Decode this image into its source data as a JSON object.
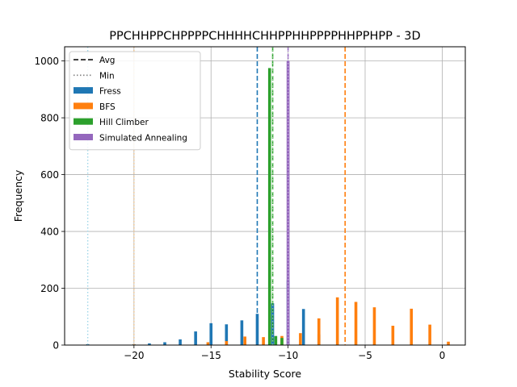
{
  "chart_data": {
    "type": "bar",
    "title": "PPCHHPPCHPPPPCHHHHCHHPPHHPPPPHHPPHPP - 3D",
    "xlabel": "Stability Score",
    "ylabel": "Frequency",
    "xlim": [
      -24.5,
      1.5
    ],
    "ylim": [
      0,
      1050
    ],
    "xticks": [
      -20,
      -15,
      -10,
      -5,
      0
    ],
    "xtick_labels": [
      "−20",
      "−15",
      "−10",
      "−5",
      "0"
    ],
    "yticks": [
      0,
      200,
      400,
      600,
      800,
      1000
    ],
    "ytick_labels": [
      "0",
      "200",
      "400",
      "600",
      "800",
      "1000"
    ],
    "grid": true,
    "legend_position": "top-left",
    "legend": [
      {
        "label": "Avg",
        "kind": "dashed-line",
        "color": "#000000"
      },
      {
        "label": "Min",
        "kind": "dotted-line",
        "color": "#808080"
      },
      {
        "label": "Fress",
        "kind": "patch",
        "color": "#1f77b4"
      },
      {
        "label": "BFS",
        "kind": "patch",
        "color": "#ff7f0e"
      },
      {
        "label": "Hill Climber",
        "kind": "patch",
        "color": "#2ca02c"
      },
      {
        "label": "Simulated Annealing",
        "kind": "patch",
        "color": "#9467bd"
      }
    ],
    "series": [
      {
        "name": "Fress",
        "color": "#1f77b4",
        "x": [
          -23.0,
          -22.0,
          -21.0,
          -20.0,
          -19.0,
          -18.0,
          -17.0,
          -16.0,
          -15.0,
          -14.0,
          -13.0,
          -12.0,
          -11.0,
          -10.0,
          -9.0,
          -8.0
        ],
        "values": [
          3,
          1,
          1,
          3,
          6,
          10,
          20,
          48,
          77,
          73,
          87,
          110,
          147,
          228,
          127,
          38
        ],
        "avg": -12.0,
        "min": -23.0
      },
      {
        "name": "BFS",
        "color": "#ff7f0e",
        "x": [
          -20.0,
          -18.8,
          -17.6,
          -16.4,
          -15.2,
          -14.0,
          -12.8,
          -11.6,
          -10.4,
          -9.2,
          -8.0,
          -6.8,
          -5.6,
          -4.4,
          -3.2,
          -2.0,
          -0.8
        ],
        "values": [
          2,
          0,
          0,
          0,
          10,
          14,
          30,
          28,
          32,
          42,
          94,
          168,
          152,
          133,
          68,
          128,
          72
        ],
        "extra_x": [
          0.4
        ],
        "extra_values": [
          12
        ],
        "avg": -6.3,
        "min": -20.0
      },
      {
        "name": "Hill Climber",
        "color": "#2ca02c",
        "x": [
          -11.2,
          -10.8,
          -10.4
        ],
        "values": [
          975,
          32,
          25
        ],
        "avg": -11.0,
        "min": -11.0
      },
      {
        "name": "Simulated Annealing",
        "color": "#9467bd",
        "x": [
          -10.0
        ],
        "values": [
          1000
        ],
        "avg": -10.0,
        "min": -10.0
      }
    ]
  }
}
